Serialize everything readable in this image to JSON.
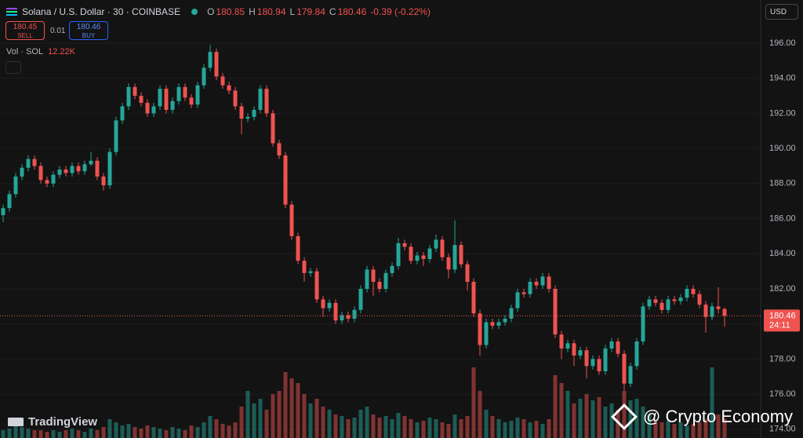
{
  "ui": {
    "ohlc": {
      "o_key": "O",
      "o": "180.85",
      "h_key": "H",
      "h": "180.94",
      "l_key": "L",
      "l": "179.84",
      "c_key": "C",
      "c": "180.46",
      "change": "-0.39 (-0.22%)"
    },
    "sell_price": "180.45",
    "sell": "SELL",
    "spread": "0.01",
    "buy_price": "180.46",
    "buy": "BUY",
    "volume_title": "Vol · SOL",
    "currency": "USD",
    "logo": "TradingView",
    "watermark": "@ Crypto Economy"
  },
  "chart_data": {
    "type": "candlestick",
    "title": "Solana / U.S. Dollar · 30 · COINBASE",
    "up_color": "#26a69a",
    "down_color": "#ef5350",
    "open": [
      186.2,
      186.6,
      187.4,
      188.4,
      188.9,
      189.4,
      189.0,
      188.2,
      188.0,
      188.5,
      188.8,
      188.6,
      189.0,
      188.7,
      189.1,
      189.3,
      188.4,
      187.9,
      189.8,
      191.6,
      192.4,
      193.5,
      193.0,
      192.6,
      192.0,
      192.4,
      193.4,
      192.2,
      192.7,
      193.5,
      192.9,
      192.5,
      193.6,
      194.6,
      195.5,
      194.1,
      193.6,
      193.3,
      192.4,
      191.7,
      191.8,
      192.2,
      193.4,
      192.0,
      190.3,
      189.6,
      186.8,
      185.0,
      183.6,
      182.9,
      183.0,
      181.4,
      180.9,
      181.2,
      180.2,
      180.5,
      180.3,
      180.8,
      182.0,
      183.1,
      182.4,
      182.0,
      182.9,
      183.3,
      184.6,
      184.4,
      183.6,
      183.9,
      183.7,
      184.3,
      184.8,
      183.8,
      183.1,
      184.5,
      183.4,
      182.4,
      180.6,
      178.8,
      180.1,
      179.9,
      180.1,
      180.3,
      180.9,
      181.8,
      181.7,
      182.4,
      182.2,
      182.7,
      182.0,
      179.4,
      178.6,
      178.9,
      178.2,
      178.5,
      177.6,
      178.0,
      177.3,
      178.6,
      179.0,
      178.3,
      176.6,
      177.6,
      179.0,
      181.0,
      181.4,
      181.2,
      180.8,
      181.4,
      181.3,
      181.5,
      182.0,
      181.7,
      181.1,
      180.4,
      181.0,
      180.85
    ],
    "high": [
      186.8,
      187.6,
      188.6,
      189.1,
      189.6,
      189.6,
      189.2,
      188.4,
      188.7,
      189.0,
      189.0,
      189.2,
      189.2,
      189.3,
      189.8,
      189.5,
      188.6,
      190.0,
      191.8,
      192.6,
      193.7,
      193.7,
      193.2,
      192.8,
      192.6,
      193.6,
      193.6,
      192.9,
      193.7,
      193.7,
      193.1,
      193.8,
      194.8,
      195.9,
      195.7,
      194.3,
      193.8,
      193.5,
      192.6,
      192.0,
      192.4,
      193.6,
      193.6,
      192.2,
      190.5,
      189.8,
      187.0,
      185.2,
      183.8,
      183.2,
      183.2,
      181.6,
      181.4,
      181.4,
      180.7,
      180.7,
      181.0,
      182.2,
      183.3,
      183.3,
      182.6,
      183.1,
      183.5,
      184.9,
      184.8,
      184.6,
      184.1,
      184.1,
      184.5,
      185.1,
      185.0,
      184.0,
      185.9,
      184.7,
      183.6,
      182.6,
      180.8,
      180.3,
      180.3,
      180.3,
      180.5,
      181.1,
      182.0,
      182.0,
      182.6,
      182.6,
      182.9,
      182.9,
      182.2,
      179.6,
      179.1,
      179.1,
      178.7,
      178.7,
      178.2,
      178.2,
      178.8,
      179.2,
      179.2,
      178.5,
      177.8,
      179.2,
      181.2,
      181.6,
      181.6,
      181.4,
      181.6,
      181.6,
      181.7,
      182.2,
      182.2,
      181.9,
      181.3,
      181.2,
      182.1,
      180.94
    ],
    "low": [
      185.8,
      186.4,
      187.2,
      188.2,
      188.7,
      188.8,
      188.0,
      187.8,
      187.8,
      188.3,
      188.4,
      188.4,
      188.5,
      188.5,
      189.0,
      188.2,
      187.6,
      187.7,
      189.6,
      191.4,
      192.2,
      192.8,
      192.4,
      191.8,
      191.8,
      192.2,
      192.0,
      192.0,
      192.5,
      192.7,
      192.3,
      192.3,
      193.4,
      194.4,
      193.9,
      193.4,
      193.1,
      192.2,
      190.8,
      191.5,
      191.6,
      192.0,
      191.8,
      190.1,
      189.4,
      186.6,
      184.8,
      183.4,
      182.4,
      182.7,
      181.2,
      180.4,
      180.7,
      180.0,
      180.0,
      180.1,
      180.1,
      180.6,
      181.8,
      181.6,
      181.8,
      181.8,
      182.7,
      183.1,
      184.2,
      183.4,
      183.4,
      183.3,
      183.5,
      184.1,
      183.6,
      182.6,
      182.9,
      183.2,
      181.9,
      180.4,
      178.2,
      178.6,
      179.7,
      179.7,
      179.9,
      180.1,
      180.7,
      181.5,
      181.5,
      182.0,
      182.0,
      181.8,
      179.2,
      178.0,
      178.4,
      177.6,
      178.0,
      176.9,
      177.4,
      177.1,
      177.1,
      178.4,
      178.1,
      176.2,
      176.4,
      177.4,
      178.8,
      180.8,
      181.0,
      180.6,
      180.6,
      181.1,
      181.1,
      181.3,
      181.5,
      180.9,
      179.5,
      180.2,
      180.6,
      179.84
    ],
    "close": [
      186.6,
      187.4,
      188.4,
      188.9,
      189.4,
      189.0,
      188.2,
      188.0,
      188.5,
      188.8,
      188.6,
      189.0,
      188.7,
      189.1,
      189.3,
      188.4,
      187.9,
      189.8,
      191.6,
      192.4,
      193.5,
      193.0,
      192.6,
      192.0,
      192.4,
      193.4,
      192.2,
      192.7,
      193.5,
      192.9,
      192.5,
      193.6,
      194.6,
      195.5,
      194.1,
      193.6,
      193.3,
      192.4,
      191.7,
      191.8,
      192.2,
      193.4,
      192.0,
      190.3,
      189.6,
      186.8,
      185.0,
      183.6,
      182.9,
      183.0,
      181.4,
      180.9,
      181.2,
      180.2,
      180.5,
      180.3,
      180.8,
      182.0,
      183.1,
      182.4,
      182.0,
      182.9,
      183.3,
      184.6,
      184.4,
      183.6,
      183.9,
      183.7,
      184.3,
      184.8,
      183.8,
      183.1,
      184.5,
      183.4,
      182.4,
      180.6,
      178.8,
      180.1,
      179.9,
      180.1,
      180.3,
      180.9,
      181.8,
      181.7,
      182.4,
      182.2,
      182.7,
      182.0,
      179.4,
      178.6,
      178.9,
      178.2,
      178.5,
      177.6,
      178.0,
      177.3,
      178.6,
      179.0,
      178.3,
      176.6,
      177.6,
      179.0,
      181.0,
      181.4,
      181.2,
      180.8,
      181.4,
      181.3,
      181.5,
      182.0,
      181.7,
      181.1,
      180.4,
      181.0,
      180.85,
      180.46
    ],
    "volume": [
      5,
      6,
      8,
      7,
      6,
      5,
      5,
      4,
      5,
      4,
      5,
      6,
      5,
      4,
      6,
      5,
      7,
      12,
      10,
      8,
      9,
      7,
      6,
      8,
      7,
      6,
      5,
      7,
      6,
      5,
      8,
      7,
      10,
      14,
      12,
      9,
      8,
      10,
      20,
      30,
      22,
      25,
      18,
      28,
      30,
      42,
      38,
      35,
      28,
      22,
      25,
      20,
      18,
      15,
      14,
      12,
      13,
      18,
      20,
      15,
      13,
      14,
      12,
      16,
      14,
      12,
      10,
      11,
      13,
      12,
      10,
      9,
      15,
      12,
      14,
      45,
      30,
      18,
      14,
      12,
      10,
      11,
      13,
      12,
      10,
      11,
      9,
      12,
      40,
      35,
      30,
      22,
      25,
      28,
      24,
      26,
      20,
      22,
      18,
      30,
      24,
      25,
      20,
      15,
      12,
      10,
      11,
      9,
      10,
      8,
      9,
      10,
      12,
      45,
      15,
      12.22
    ],
    "volume_last_label": "12.22K",
    "volume_ylim": [
      0,
      50
    ],
    "ylim": [
      173.5,
      198.46
    ],
    "yticks": [
      {
        "value": 174,
        "label": "174.00"
      },
      {
        "value": 176,
        "label": "176.00"
      },
      {
        "value": 178,
        "label": "178.00"
      },
      {
        "value": 180,
        "label": "180.00"
      },
      {
        "value": 182,
        "label": "182.00"
      },
      {
        "value": 184,
        "label": "184.00"
      },
      {
        "value": 186,
        "label": "186.00"
      },
      {
        "value": 188,
        "label": "188.00"
      },
      {
        "value": 190,
        "label": "190.00"
      },
      {
        "value": 192,
        "label": "192.00"
      },
      {
        "value": 194,
        "label": "194.00"
      },
      {
        "value": 196,
        "label": "196.00"
      }
    ],
    "grid": true,
    "last_price": {
      "value": 180.46,
      "label": "180.46"
    },
    "countdown": "24:11"
  }
}
